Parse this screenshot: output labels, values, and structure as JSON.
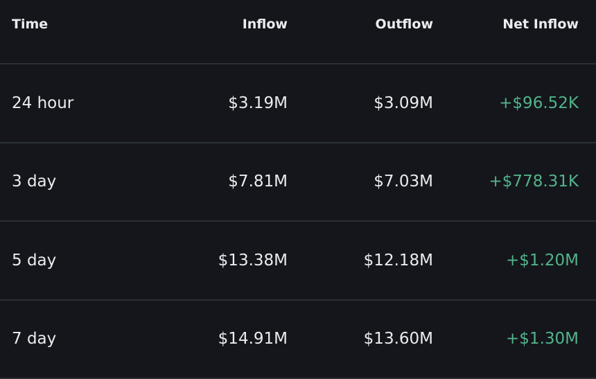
{
  "table": {
    "columns": [
      "Time",
      "Inflow",
      "Outflow",
      "Net Inflow"
    ],
    "rows": [
      [
        "24 hour",
        "$3.19M",
        "$3.09M",
        "+$96.52K"
      ],
      [
        "3 day",
        "$7.81M",
        "$7.03M",
        "+$778.31K"
      ],
      [
        "5 day",
        "$13.38M",
        "$12.18M",
        "+$1.20M"
      ],
      [
        "7 day",
        "$14.91M",
        "$13.60M",
        "+$1.30M"
      ]
    ]
  }
}
